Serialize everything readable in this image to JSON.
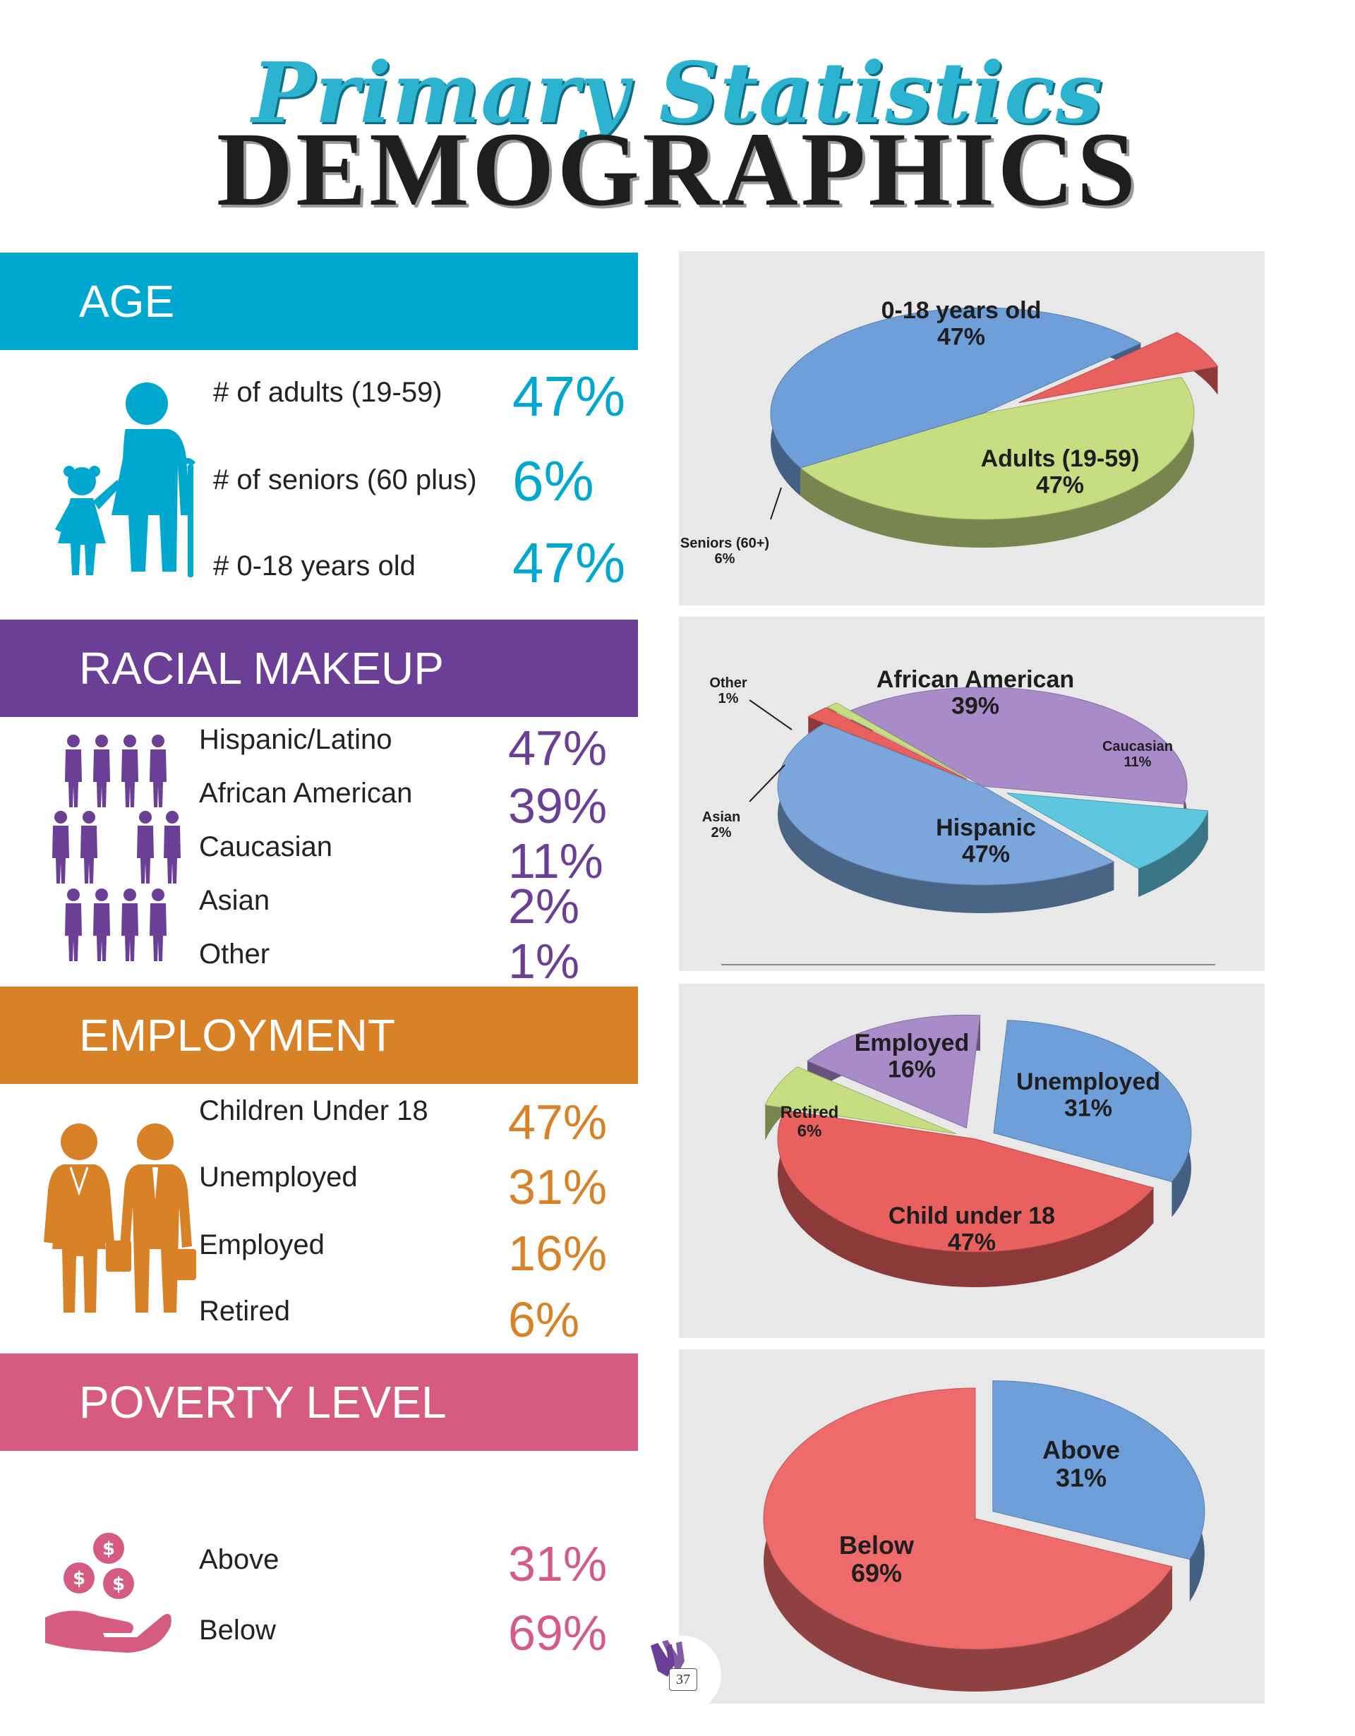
{
  "header": {
    "script_title": "Primary Statistics",
    "main_title": "DEMOGRAPHICS"
  },
  "colors": {
    "age": "#00a8cf",
    "race": "#6a3f95",
    "employment": "#d98127",
    "poverty": "#d65b80",
    "panel_bg": "#e8e8e8"
  },
  "age": {
    "heading": "AGE",
    "rows": [
      {
        "label": "# of adults (19-59)",
        "value": "47%"
      },
      {
        "label": "# of seniors (60 plus)",
        "value": "6%"
      },
      {
        "label": "# 0-18 years old",
        "value": "47%"
      }
    ]
  },
  "race": {
    "heading": "RACIAL MAKEUP",
    "rows": [
      {
        "label": "Hispanic/Latino",
        "value": "47%"
      },
      {
        "label": "African American",
        "value": "39%"
      },
      {
        "label": "Caucasian",
        "value": "11%"
      },
      {
        "label": "Asian",
        "value": "2%"
      },
      {
        "label": "Other",
        "value": "1%"
      }
    ]
  },
  "employment": {
    "heading": "EMPLOYMENT",
    "rows": [
      {
        "label": "Children Under 18",
        "value": "47%"
      },
      {
        "label": "Unemployed",
        "value": "31%"
      },
      {
        "label": "Employed",
        "value": "16%"
      },
      {
        "label": "Retired",
        "value": "6%"
      }
    ]
  },
  "poverty": {
    "heading": "POVERTY LEVEL",
    "rows": [
      {
        "label": "Above",
        "value": "31%"
      },
      {
        "label": "Below",
        "value": "69%"
      }
    ]
  },
  "page_number": "37",
  "chart_data": [
    {
      "type": "pie",
      "title": "",
      "slices": [
        {
          "label": "0-18 years old",
          "value": 47,
          "display": "47%",
          "color": "#c6dd82"
        },
        {
          "label": "Adults (19-59)",
          "value": 47,
          "display": "47%",
          "color": "#6f9fd8"
        },
        {
          "label": "Seniors (60+)",
          "value": 6,
          "display": "6%",
          "color": "#e8615f"
        }
      ]
    },
    {
      "type": "pie",
      "title": "",
      "slices": [
        {
          "label": "African American",
          "value": 39,
          "display": "39%",
          "color": "#a88bc9"
        },
        {
          "label": "Caucasian",
          "value": 11,
          "display": "11%",
          "color": "#5fc6e0"
        },
        {
          "label": "Hispanic",
          "value": 47,
          "display": "47%",
          "color": "#7aa6dc"
        },
        {
          "label": "Asian",
          "value": 2,
          "display": "2%",
          "color": "#e8615f"
        },
        {
          "label": "Other",
          "value": 1,
          "display": "1%",
          "color": "#c6dd82"
        }
      ]
    },
    {
      "type": "pie",
      "title": "",
      "slices": [
        {
          "label": "Unemployed",
          "value": 31,
          "display": "31%",
          "color": "#6f9fd8"
        },
        {
          "label": "Child under 18",
          "value": 47,
          "display": "47%",
          "color": "#e8615f"
        },
        {
          "label": "Retired",
          "value": 6,
          "display": "6%",
          "color": "#c6dd82"
        },
        {
          "label": "Employed",
          "value": 16,
          "display": "16%",
          "color": "#a88bc9"
        }
      ]
    },
    {
      "type": "pie",
      "title": "",
      "slices": [
        {
          "label": "Above",
          "value": 31,
          "display": "31%",
          "color": "#6f9fd8"
        },
        {
          "label": "Below",
          "value": 69,
          "display": "69%",
          "color": "#ef6b6b"
        }
      ]
    }
  ]
}
